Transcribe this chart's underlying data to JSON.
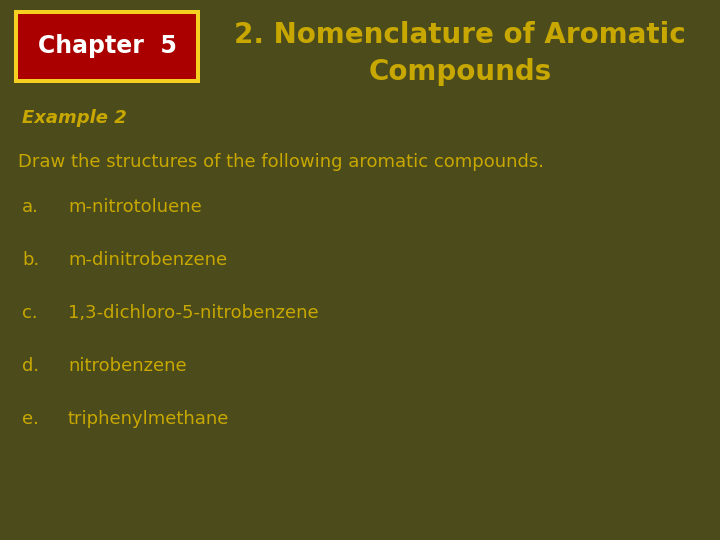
{
  "background_color": "#4b4b1c",
  "chapter_box_bg": "#aa0000",
  "chapter_box_border": "#f5d020",
  "chapter_text": "Chapter  5",
  "chapter_text_color": "#ffffff",
  "title_text_line1": "2. Nomenclature of Aromatic",
  "title_text_line2": "Compounds",
  "title_color": "#c8a800",
  "example_text": "Example 2",
  "example_color": "#c8a800",
  "body_text": "Draw the structures of the following aromatic compounds.",
  "body_color": "#c8a800",
  "items": [
    {
      "label": "a.",
      "text": "m-nitrotoluene"
    },
    {
      "label": "b.",
      "text": "m-dinitrobenzene"
    },
    {
      "label": "c.",
      "text": "1,3-dichloro-5-nitrobenzene"
    },
    {
      "label": "d.",
      "text": "nitrobenzene"
    },
    {
      "label": "e.",
      "text": "triphenylmethane"
    }
  ],
  "label_color": "#c8a800",
  "item_color": "#c8a800",
  "title_fontsize": 20,
  "example_fontsize": 13,
  "body_fontsize": 13,
  "item_fontsize": 13,
  "chapter_fontsize": 17,
  "fig_width": 7.2,
  "fig_height": 5.4,
  "dpi": 100
}
